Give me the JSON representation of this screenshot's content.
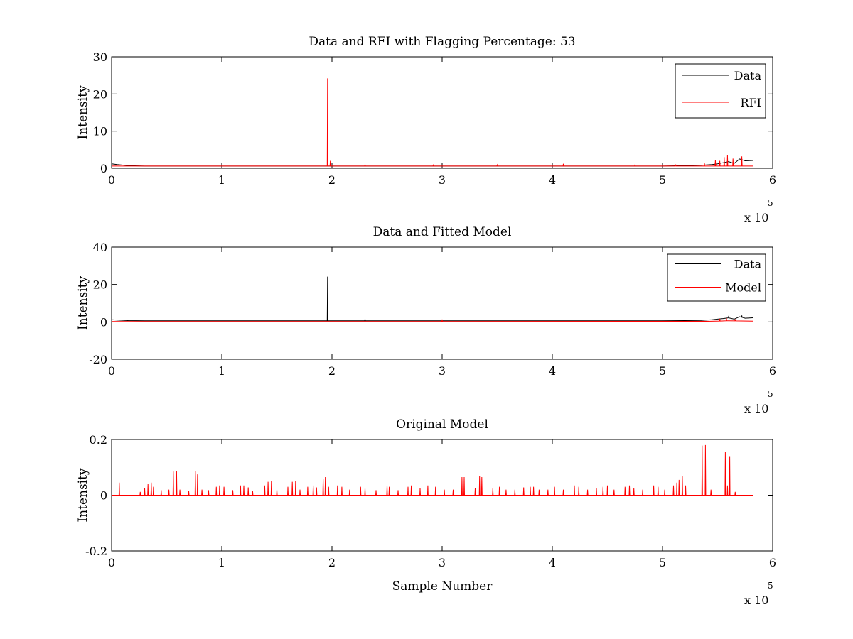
{
  "chart_data": [
    {
      "type": "line",
      "title": "Data and RFI with Flagging Percentage: 53",
      "xlabel": "",
      "ylabel": "Intensity",
      "xlim": [
        0,
        600000
      ],
      "ylim": [
        0,
        30
      ],
      "xticks": [
        0,
        100000,
        200000,
        300000,
        400000,
        500000,
        600000
      ],
      "xtick_labels": [
        "0",
        "1",
        "2",
        "3",
        "4",
        "5",
        "6"
      ],
      "yticks": [
        0,
        10,
        20,
        30
      ],
      "ytick_labels": [
        "0",
        "10",
        "20",
        "30"
      ],
      "x_multiplier_base": "x 10",
      "x_multiplier_exp": "5",
      "grid": false,
      "legend_position": "top-right",
      "legend_entries": [
        "Data",
        "RFI"
      ],
      "x_end": 582000,
      "series": [
        {
          "name": "Data",
          "color": "#000000",
          "baseline": [
            [
              0,
              1.2
            ],
            [
              5000,
              1.0
            ],
            [
              15000,
              0.7
            ],
            [
              30000,
              0.6
            ],
            [
              80000,
              0.6
            ],
            [
              200000,
              0.6
            ],
            [
              400000,
              0.6
            ],
            [
              500000,
              0.6
            ],
            [
              520000,
              0.7
            ],
            [
              535000,
              0.8
            ],
            [
              545000,
              1.0
            ],
            [
              550000,
              1.2
            ],
            [
              555000,
              1.5
            ],
            [
              560000,
              1.8
            ],
            [
              565000,
              1.3
            ],
            [
              570000,
              2.5
            ],
            [
              575000,
              2.0
            ],
            [
              582000,
              2.1
            ]
          ],
          "spikes": []
        },
        {
          "name": "RFI",
          "color": "#ff0000",
          "baseline": [
            [
              0,
              0.6
            ],
            [
              582000,
              0.6
            ]
          ],
          "spikes": [
            [
              196000,
              24.2
            ],
            [
              198500,
              2.0
            ],
            [
              230000,
              1.0
            ],
            [
              292000,
              1.0
            ],
            [
              350000,
              0.9
            ],
            [
              410000,
              1.2
            ],
            [
              475000,
              1.0
            ],
            [
              512000,
              1.0
            ],
            [
              538000,
              1.5
            ],
            [
              548000,
              2.2
            ],
            [
              552000,
              2.0
            ],
            [
              556000,
              3.0
            ],
            [
              559000,
              3.5
            ],
            [
              564000,
              2.6
            ],
            [
              572000,
              3.2
            ]
          ]
        }
      ]
    },
    {
      "type": "line",
      "title": "Data and Fitted Model",
      "xlabel": "",
      "ylabel": "Intensity",
      "xlim": [
        0,
        600000
      ],
      "ylim": [
        -20,
        40
      ],
      "xticks": [
        0,
        100000,
        200000,
        300000,
        400000,
        500000,
        600000
      ],
      "xtick_labels": [
        "0",
        "1",
        "2",
        "3",
        "4",
        "5",
        "6"
      ],
      "yticks": [
        -20,
        0,
        20,
        40
      ],
      "ytick_labels": [
        "-20",
        "0",
        "20",
        "40"
      ],
      "x_multiplier_base": "x 10",
      "x_multiplier_exp": "5",
      "grid": false,
      "legend_position": "top-right",
      "legend_entries": [
        "Data",
        "Model"
      ],
      "x_end": 582000,
      "series": [
        {
          "name": "Data",
          "color": "#000000",
          "baseline": [
            [
              0,
              1.2
            ],
            [
              5000,
              1.0
            ],
            [
              15000,
              0.7
            ],
            [
              30000,
              0.6
            ],
            [
              80000,
              0.6
            ],
            [
              200000,
              0.6
            ],
            [
              400000,
              0.6
            ],
            [
              500000,
              0.6
            ],
            [
              520000,
              0.7
            ],
            [
              535000,
              0.8
            ],
            [
              545000,
              1.2
            ],
            [
              550000,
              1.5
            ],
            [
              555000,
              1.8
            ],
            [
              560000,
              2.2
            ],
            [
              565000,
              1.5
            ],
            [
              570000,
              2.8
            ],
            [
              575000,
              2.0
            ],
            [
              582000,
              2.2
            ]
          ],
          "spikes": [
            [
              196000,
              24.2
            ],
            [
              230000,
              1.5
            ],
            [
              560000,
              3.2
            ],
            [
              572000,
              3.4
            ]
          ]
        },
        {
          "name": "Model",
          "color": "#ff0000",
          "baseline": [
            [
              0,
              0.2
            ],
            [
              540000,
              0.3
            ],
            [
              560000,
              0.6
            ],
            [
              582000,
              0.4
            ]
          ],
          "spikes": [
            [
              300000,
              0.9
            ],
            [
              552000,
              1.6
            ],
            [
              558000,
              2.0
            ],
            [
              566000,
              1.4
            ]
          ]
        }
      ]
    },
    {
      "type": "line",
      "title": "Original Model",
      "xlabel": "Sample Number",
      "ylabel": "Intensity",
      "xlim": [
        0,
        600000
      ],
      "ylim": [
        -0.2,
        0.2
      ],
      "xticks": [
        0,
        100000,
        200000,
        300000,
        400000,
        500000,
        600000
      ],
      "xtick_labels": [
        "0",
        "1",
        "2",
        "3",
        "4",
        "5",
        "6"
      ],
      "yticks": [
        -0.2,
        0,
        0.2
      ],
      "ytick_labels": [
        "-0.2",
        "0",
        "0.2"
      ],
      "x_multiplier_base": "x 10",
      "x_multiplier_exp": "5",
      "grid": false,
      "legend_position": "none",
      "legend_entries": [],
      "x_end": 582000,
      "series": [
        {
          "name": "",
          "color": "#ff0000",
          "baseline": [
            [
              0,
              0
            ],
            [
              582000,
              0
            ]
          ],
          "spikes": [
            [
              7000,
              0.045
            ],
            [
              26000,
              0.012
            ],
            [
              30000,
              0.025
            ],
            [
              33000,
              0.04
            ],
            [
              36000,
              0.045
            ],
            [
              38000,
              0.03
            ],
            [
              45000,
              0.018
            ],
            [
              52000,
              0.02
            ],
            [
              56000,
              0.085
            ],
            [
              59000,
              0.088
            ],
            [
              62000,
              0.02
            ],
            [
              70000,
              0.015
            ],
            [
              76000,
              0.088
            ],
            [
              78000,
              0.075
            ],
            [
              82000,
              0.02
            ],
            [
              88000,
              0.018
            ],
            [
              95000,
              0.03
            ],
            [
              98000,
              0.035
            ],
            [
              102000,
              0.03
            ],
            [
              110000,
              0.018
            ],
            [
              117000,
              0.035
            ],
            [
              120000,
              0.035
            ],
            [
              124000,
              0.028
            ],
            [
              128000,
              0.015
            ],
            [
              139000,
              0.035
            ],
            [
              142000,
              0.048
            ],
            [
              145000,
              0.05
            ],
            [
              150000,
              0.02
            ],
            [
              160000,
              0.03
            ],
            [
              164000,
              0.048
            ],
            [
              167000,
              0.05
            ],
            [
              171000,
              0.02
            ],
            [
              178000,
              0.03
            ],
            [
              183000,
              0.035
            ],
            [
              186000,
              0.028
            ],
            [
              192000,
              0.06
            ],
            [
              194000,
              0.065
            ],
            [
              197000,
              0.03
            ],
            [
              205000,
              0.035
            ],
            [
              209000,
              0.03
            ],
            [
              216000,
              0.02
            ],
            [
              226000,
              0.03
            ],
            [
              230000,
              0.025
            ],
            [
              240000,
              0.018
            ],
            [
              250000,
              0.035
            ],
            [
              252000,
              0.03
            ],
            [
              260000,
              0.018
            ],
            [
              269000,
              0.03
            ],
            [
              272000,
              0.035
            ],
            [
              280000,
              0.025
            ],
            [
              287000,
              0.035
            ],
            [
              294000,
              0.03
            ],
            [
              302000,
              0.02
            ],
            [
              310000,
              0.02
            ],
            [
              318000,
              0.065
            ],
            [
              320000,
              0.065
            ],
            [
              330000,
              0.025
            ],
            [
              334000,
              0.07
            ],
            [
              336000,
              0.065
            ],
            [
              346000,
              0.025
            ],
            [
              352000,
              0.03
            ],
            [
              358000,
              0.02
            ],
            [
              366000,
              0.02
            ],
            [
              374000,
              0.028
            ],
            [
              380000,
              0.03
            ],
            [
              383000,
              0.03
            ],
            [
              388000,
              0.02
            ],
            [
              396000,
              0.02
            ],
            [
              402000,
              0.03
            ],
            [
              410000,
              0.02
            ],
            [
              420000,
              0.035
            ],
            [
              424000,
              0.03
            ],
            [
              432000,
              0.02
            ],
            [
              440000,
              0.025
            ],
            [
              446000,
              0.03
            ],
            [
              450000,
              0.035
            ],
            [
              456000,
              0.02
            ],
            [
              466000,
              0.03
            ],
            [
              470000,
              0.035
            ],
            [
              474000,
              0.025
            ],
            [
              482000,
              0.02
            ],
            [
              492000,
              0.035
            ],
            [
              496000,
              0.03
            ],
            [
              502000,
              0.02
            ],
            [
              510000,
              0.035
            ],
            [
              513000,
              0.045
            ],
            [
              515000,
              0.055
            ],
            [
              518000,
              0.068
            ],
            [
              521000,
              0.035
            ],
            [
              536000,
              0.178
            ],
            [
              539000,
              0.18
            ],
            [
              544000,
              0.02
            ],
            [
              557000,
              0.155
            ],
            [
              559000,
              0.035
            ],
            [
              561000,
              0.14
            ],
            [
              566000,
              0.012
            ]
          ]
        }
      ]
    }
  ]
}
